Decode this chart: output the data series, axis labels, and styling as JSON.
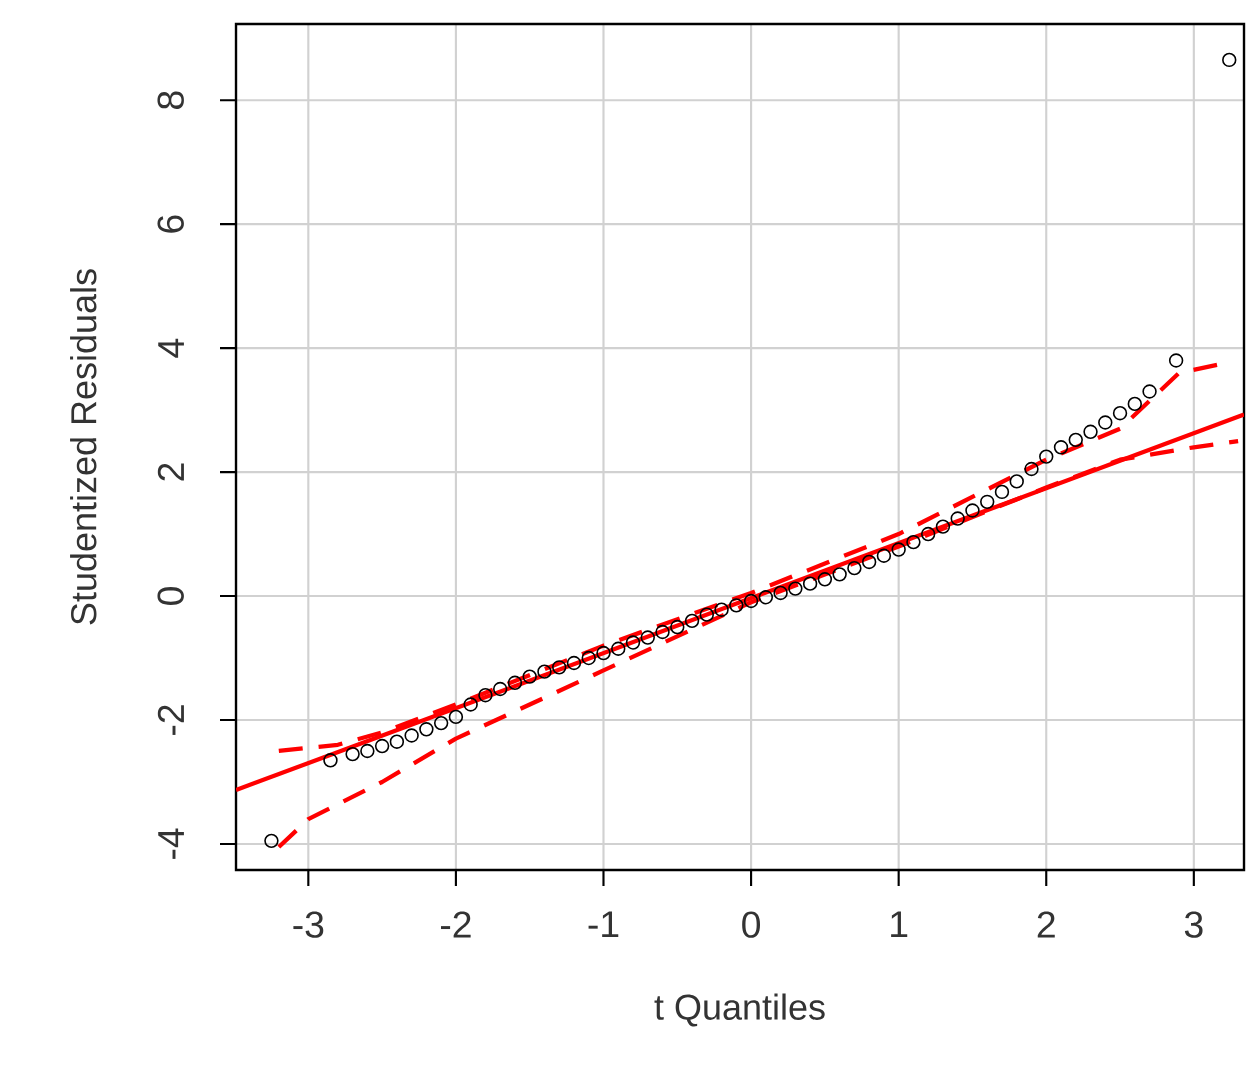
{
  "chart_data": {
    "type": "scatter",
    "xlabel": "t Quantiles",
    "ylabel": "Studentized Residuals",
    "xlim": [
      -3.49,
      3.34
    ],
    "ylim": [
      -4.42,
      9.23
    ],
    "xticks": [
      -3,
      -2,
      -1,
      0,
      1,
      2,
      3
    ],
    "yticks": [
      -4,
      -2,
      0,
      2,
      4,
      6,
      8
    ],
    "grid": true,
    "series": [
      {
        "color": "#000000",
        "marker": "circle",
        "x": [
          -3.25,
          -2.85,
          -2.7,
          -2.6,
          -2.5,
          -2.4,
          -2.3,
          -2.2,
          -2.1,
          -2.0,
          -1.9,
          -1.8,
          -1.7,
          -1.6,
          -1.5,
          -1.4,
          -1.3,
          -1.2,
          -1.1,
          -1.0,
          -0.9,
          -0.8,
          -0.7,
          -0.6,
          -0.5,
          -0.4,
          -0.3,
          -0.2,
          -0.1,
          0.0,
          0.1,
          0.2,
          0.3,
          0.4,
          0.5,
          0.6,
          0.7,
          0.8,
          0.9,
          1.0,
          1.1,
          1.2,
          1.3,
          1.4,
          1.5,
          1.6,
          1.7,
          1.8,
          1.9,
          2.0,
          2.1,
          2.2,
          2.3,
          2.4,
          2.5,
          2.6,
          2.7,
          2.88,
          3.24
        ],
        "values": [
          -3.95,
          -2.65,
          -2.55,
          -2.5,
          -2.42,
          -2.35,
          -2.25,
          -2.15,
          -2.05,
          -1.95,
          -1.75,
          -1.6,
          -1.5,
          -1.4,
          -1.3,
          -1.22,
          -1.15,
          -1.08,
          -1.0,
          -0.92,
          -0.85,
          -0.75,
          -0.67,
          -0.58,
          -0.5,
          -0.4,
          -0.3,
          -0.22,
          -0.15,
          -0.08,
          -0.02,
          0.05,
          0.12,
          0.2,
          0.27,
          0.35,
          0.45,
          0.55,
          0.65,
          0.75,
          0.87,
          1.0,
          1.12,
          1.25,
          1.38,
          1.52,
          1.68,
          1.85,
          2.05,
          2.25,
          2.4,
          2.52,
          2.65,
          2.8,
          2.95,
          3.1,
          3.3,
          3.8,
          8.65
        ]
      },
      {
        "type": "line",
        "color": "#ff0000",
        "line_style": "solid",
        "x": [
          -3.49,
          3.34
        ],
        "values": [
          -3.13,
          2.93
        ]
      },
      {
        "type": "line",
        "color": "#ff0000",
        "line_style": "dashed",
        "x": [
          -3.2,
          -2.8,
          -2.5,
          -2.0,
          -1.0,
          0.0,
          1.0,
          2.0,
          2.5,
          2.9,
          3.2
        ],
        "values": [
          -2.5,
          -2.4,
          -2.2,
          -1.75,
          -0.8,
          0.05,
          1.0,
          2.2,
          2.7,
          3.6,
          3.75
        ]
      },
      {
        "type": "line",
        "color": "#ff0000",
        "line_style": "dashed",
        "x": [
          -3.2,
          -3.0,
          -2.5,
          -2.0,
          -1.0,
          0.0,
          1.0,
          2.0,
          2.5,
          3.0,
          3.3
        ],
        "values": [
          -4.05,
          -3.6,
          -3.0,
          -2.3,
          -1.2,
          -0.1,
          0.8,
          1.75,
          2.2,
          2.4,
          2.5
        ]
      }
    ]
  }
}
